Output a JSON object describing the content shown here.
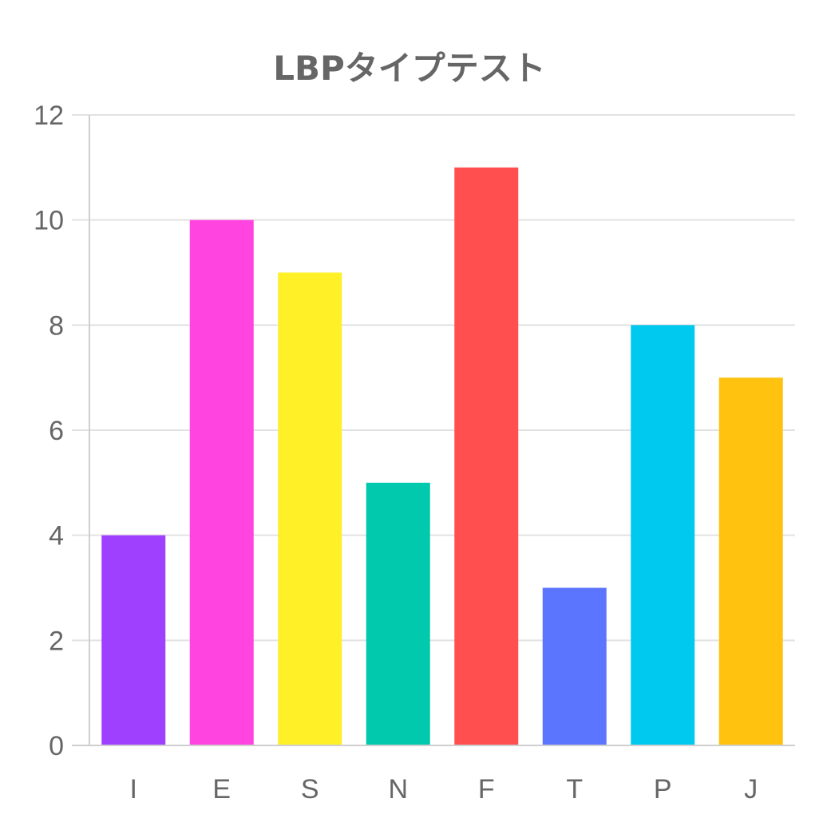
{
  "chart_data": {
    "type": "bar",
    "title": "LBPタイプテスト",
    "xlabel": "",
    "ylabel": "",
    "categories": [
      "I",
      "E",
      "S",
      "N",
      "F",
      "T",
      "P",
      "J"
    ],
    "values": [
      4,
      10,
      9,
      5,
      11,
      3,
      8,
      7
    ],
    "colors": [
      "#a040ff",
      "#ff44e0",
      "#fff027",
      "#00c9ae",
      "#ff4f4f",
      "#5c75ff",
      "#00c9ef",
      "#ffc20f"
    ],
    "ylim": [
      0,
      12
    ],
    "yticks": [
      0,
      2,
      4,
      6,
      8,
      10,
      12
    ],
    "grid": true,
    "legend": "none"
  }
}
